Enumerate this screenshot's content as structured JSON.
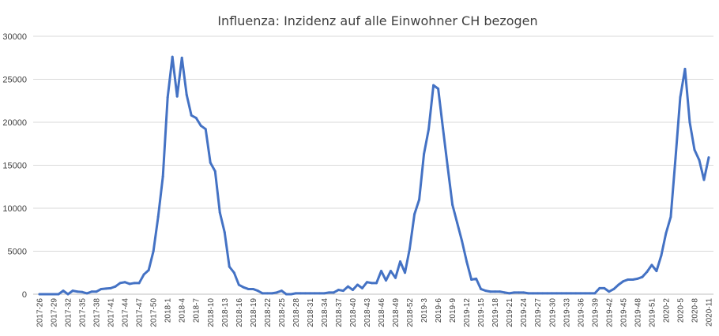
{
  "chart_data": {
    "type": "line",
    "title": "Influenza: Inzidenz auf alle Einwohner CH bezogen",
    "xlabel": "",
    "ylabel": "",
    "ylim": [
      0,
      30000
    ],
    "yticks": [
      0,
      5000,
      10000,
      15000,
      20000,
      25000,
      30000
    ],
    "ytick_labels": [
      "0",
      "5000",
      "10000",
      "15000",
      "20000",
      "25000",
      "30000"
    ],
    "grid": true,
    "legend": "none",
    "color": "#4472c4",
    "x_first_week": "2017-26",
    "x_last_week": "2020-11",
    "x_tick_labels": [
      "2017-26",
      "2017-29",
      "2017-32",
      "2017-35",
      "2017-38",
      "2017-41",
      "2017-44",
      "2017-47",
      "2017-50",
      "2018-1",
      "2018-4",
      "2018-7",
      "2018-10",
      "2018-13",
      "2018-16",
      "2018-19",
      "2018-22",
      "2018-25",
      "2018-28",
      "2018-31",
      "2018-34",
      "2018-37",
      "2018-40",
      "2018-43",
      "2018-46",
      "2018-49",
      "2018-52",
      "2019-3",
      "2019-6",
      "2019-9",
      "2019-12",
      "2019-15",
      "2019-18",
      "2019-21",
      "2019-24",
      "2019-27",
      "2019-30",
      "2019-33",
      "2019-36",
      "2019-39",
      "2019-42",
      "2019-45",
      "2019-48",
      "2019-51",
      "2020-2",
      "2020-5",
      "2020-8",
      "2020-11"
    ],
    "values": [
      0,
      0,
      0,
      0,
      0,
      400,
      0,
      400,
      300,
      250,
      100,
      300,
      300,
      600,
      650,
      700,
      900,
      1300,
      1400,
      1200,
      1300,
      1300,
      2300,
      2800,
      5000,
      9000,
      13700,
      22900,
      27600,
      23000,
      27500,
      23200,
      20800,
      20500,
      19600,
      19200,
      15300,
      14300,
      9500,
      7200,
      3200,
      2500,
      1100,
      800,
      600,
      600,
      400,
      100,
      100,
      100,
      200,
      400,
      0,
      0,
      100,
      100,
      100,
      100,
      100,
      100,
      100,
      200,
      200,
      500,
      400,
      900,
      500,
      1100,
      700,
      1400,
      1300,
      1300,
      2700,
      1600,
      2700,
      1900,
      3800,
      2500,
      5300,
      9300,
      11000,
      16300,
      19200,
      24300,
      23900,
      19300,
      14800,
      10400,
      8300,
      6200,
      3800,
      1700,
      1800,
      600,
      400,
      300,
      300,
      300,
      200,
      100,
      200,
      200,
      200,
      100,
      100,
      100,
      100,
      100,
      100,
      100,
      100,
      100,
      100,
      100,
      100,
      100,
      100,
      100,
      700,
      700,
      300,
      600,
      1100,
      1500,
      1700,
      1700,
      1800,
      2000,
      2600,
      3400,
      2700,
      4500,
      7100,
      9000,
      15800,
      22900,
      26200,
      20000,
      16800,
      15600,
      13300,
      15900
    ]
  }
}
